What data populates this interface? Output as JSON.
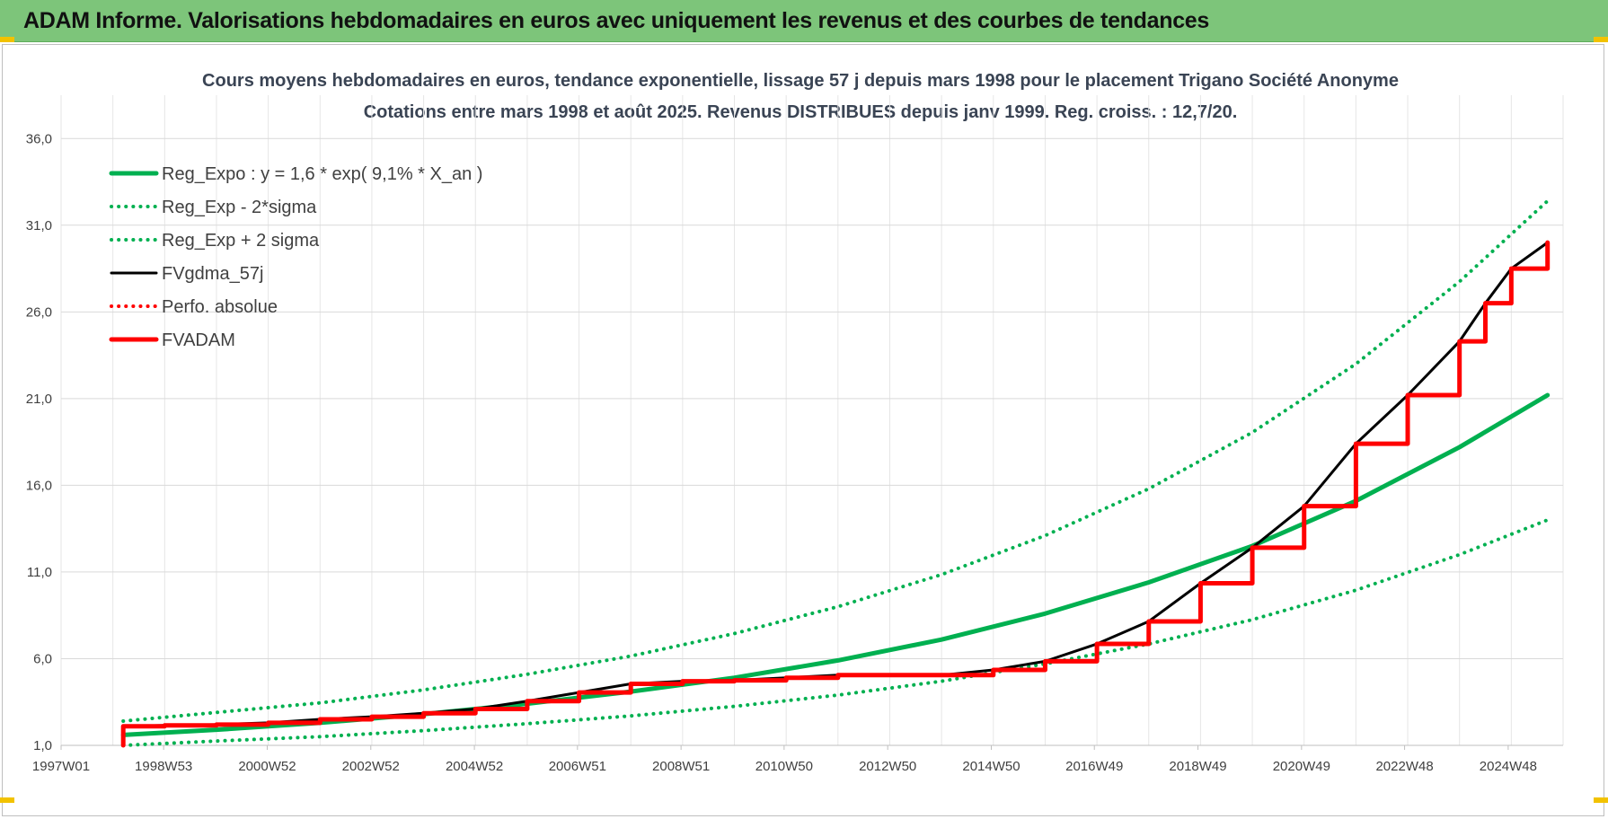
{
  "banner": {
    "title": "ADAM Informe. Valorisations hebdomadaires en euros avec uniquement les revenus et des courbes de tendances"
  },
  "chart_data": {
    "type": "line",
    "title": "Cours moyens hebdomadaires en euros, tendance exponentielle, lissage 57 j depuis mars 1998 pour le placement Trigano Société Anonyme",
    "subtitle": "Cotations entre mars 1998 et août 2025. Revenus DISTRIBUES depuis janv 1999. Reg. croiss. : 12,7/20.",
    "xlabel": "",
    "ylabel": "",
    "xlim": [
      1997.0,
      2026.0
    ],
    "ylim": [
      1.0,
      38.5
    ],
    "yticks": [
      1.0,
      6.0,
      11.0,
      16.0,
      21.0,
      26.0,
      31.0,
      36.0
    ],
    "ytick_labels": [
      "1,0",
      "6,0",
      "11,0",
      "16,0",
      "21,0",
      "26,0",
      "31,0",
      "36,0"
    ],
    "xticks": [
      1997.0,
      1998.98,
      2000.98,
      2002.98,
      2004.98,
      2006.97,
      2008.97,
      2010.96,
      2012.96,
      2014.96,
      2016.95,
      2018.95,
      2020.95,
      2022.94,
      2024.94
    ],
    "xtick_labels": [
      "1997W01",
      "1998W53",
      "2000W52",
      "2002W52",
      "2004W52",
      "2006W51",
      "2008W51",
      "2010W50",
      "2012W50",
      "2014W50",
      "2016W49",
      "2018W49",
      "2020W49",
      "2022W48",
      "2024W48"
    ],
    "grid": true,
    "legend_position": "top-left",
    "series": [
      {
        "name": "Reg_Expo : y = 1,6 * exp( 9,1% *  X_an )",
        "style": "solid",
        "color": "#00b050",
        "x": [
          1998.2,
          2000.0,
          2002.0,
          2004.0,
          2006.0,
          2008.0,
          2010.0,
          2012.0,
          2014.0,
          2016.0,
          2018.0,
          2020.0,
          2022.0,
          2024.0,
          2025.7
        ],
        "y": [
          1.6,
          1.9,
          2.3,
          2.8,
          3.4,
          4.1,
          4.9,
          5.9,
          7.1,
          8.6,
          10.4,
          12.5,
          15.1,
          18.2,
          21.2
        ]
      },
      {
        "name": "Reg_Exp - 2*sigma",
        "style": "dotted",
        "color": "#00b050",
        "x": [
          1998.2,
          2000.0,
          2002.0,
          2004.0,
          2006.0,
          2008.0,
          2010.0,
          2012.0,
          2014.0,
          2016.0,
          2018.0,
          2020.0,
          2022.0,
          2024.0,
          2025.7
        ],
        "y": [
          1.0,
          1.25,
          1.5,
          1.85,
          2.25,
          2.7,
          3.25,
          3.9,
          4.7,
          5.7,
          6.85,
          8.25,
          9.95,
          12.0,
          14.0
        ]
      },
      {
        "name": "Reg_Exp + 2 sigma",
        "style": "dotted",
        "color": "#00b050",
        "x": [
          1998.2,
          2000.0,
          2002.0,
          2004.0,
          2006.0,
          2008.0,
          2010.0,
          2012.0,
          2014.0,
          2016.0,
          2018.0,
          2020.0,
          2022.0,
          2024.0,
          2025.7
        ],
        "y": [
          2.4,
          2.9,
          3.45,
          4.2,
          5.1,
          6.15,
          7.45,
          9.0,
          10.85,
          13.1,
          15.8,
          19.05,
          23.0,
          27.75,
          32.4
        ]
      },
      {
        "name": "FVgdma_57j",
        "style": "solid",
        "color": "#000000",
        "x": [
          1998.2,
          1999.0,
          2000.0,
          2001.0,
          2002.0,
          2003.0,
          2004.0,
          2005.0,
          2006.0,
          2007.0,
          2008.0,
          2009.0,
          2010.0,
          2011.0,
          2012.0,
          2013.0,
          2014.0,
          2015.0,
          2016.0,
          2017.0,
          2018.0,
          2019.0,
          2020.0,
          2021.0,
          2022.0,
          2023.0,
          2024.0,
          2024.5,
          2025.0,
          2025.7
        ],
        "y": [
          2.1,
          2.15,
          2.2,
          2.3,
          2.5,
          2.65,
          2.85,
          3.1,
          3.55,
          4.05,
          4.55,
          4.7,
          4.75,
          4.9,
          5.05,
          5.05,
          5.05,
          5.35,
          5.85,
          6.85,
          8.15,
          10.35,
          12.4,
          14.8,
          18.4,
          21.2,
          24.3,
          26.5,
          28.5,
          30.0
        ]
      },
      {
        "name": "Perfo. absolue",
        "style": "dotted",
        "color": "#ff0000",
        "x": [],
        "y": []
      },
      {
        "name": "FVADAM",
        "style": "solid",
        "color": "#ff0000",
        "x": [
          1998.2,
          1998.2,
          1999.0,
          2000.0,
          2001.0,
          2002.0,
          2003.0,
          2004.0,
          2005.0,
          2006.0,
          2007.0,
          2008.0,
          2009.0,
          2010.0,
          2011.0,
          2012.0,
          2013.0,
          2014.0,
          2015.0,
          2016.0,
          2017.0,
          2018.0,
          2019.0,
          2020.0,
          2021.0,
          2022.0,
          2023.0,
          2024.0,
          2024.5,
          2025.0,
          2025.7
        ],
        "y": [
          1.0,
          2.1,
          2.15,
          2.2,
          2.3,
          2.5,
          2.65,
          2.85,
          3.1,
          3.55,
          4.05,
          4.55,
          4.7,
          4.75,
          4.9,
          5.05,
          5.05,
          5.05,
          5.35,
          5.85,
          6.85,
          8.15,
          10.35,
          12.4,
          14.8,
          18.4,
          21.2,
          24.3,
          26.5,
          28.5,
          30.0
        ]
      }
    ]
  }
}
